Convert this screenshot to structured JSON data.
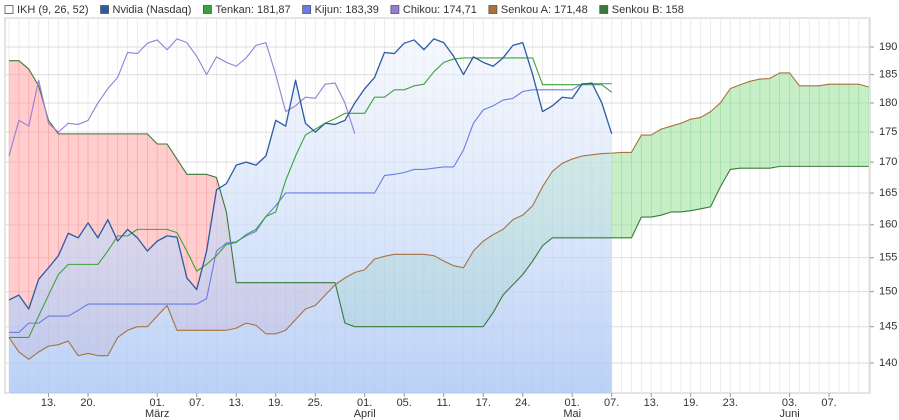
{
  "chart_data": {
    "type": "ichimoku",
    "indicator": {
      "name": "IKH (9, 26, 52)",
      "color": "#ffffff"
    },
    "categories": [
      null,
      null,
      null,
      null,
      "13.",
      null,
      null,
      null,
      "20.",
      null,
      null,
      null,
      null,
      null,
      null,
      "01.",
      null,
      null,
      null,
      "07.",
      null,
      null,
      null,
      "13.",
      null,
      null,
      null,
      "19.",
      null,
      null,
      null,
      "25.",
      null,
      null,
      null,
      null,
      "01.",
      null,
      null,
      null,
      "05.",
      null,
      null,
      null,
      "11.",
      null,
      null,
      null,
      "17.",
      null,
      null,
      null,
      "24.",
      null,
      null,
      null,
      null,
      "01.",
      null,
      null,
      null,
      "07.",
      null,
      null,
      null,
      "13.",
      null,
      null,
      null,
      "19.",
      null,
      null,
      null,
      "23.",
      null,
      null,
      null,
      null,
      null,
      "03.",
      null,
      null,
      null,
      "07.",
      null,
      null,
      null,
      null
    ],
    "months": [
      null,
      null,
      null,
      null,
      null,
      null,
      null,
      null,
      null,
      null,
      null,
      null,
      null,
      null,
      null,
      "März",
      null,
      null,
      null,
      null,
      null,
      null,
      null,
      null,
      null,
      null,
      null,
      null,
      null,
      null,
      null,
      null,
      null,
      null,
      null,
      null,
      "April",
      null,
      null,
      null,
      null,
      null,
      null,
      null,
      null,
      null,
      null,
      null,
      null,
      null,
      null,
      null,
      null,
      null,
      null,
      null,
      null,
      "Mai",
      null,
      null,
      null,
      null,
      null,
      null,
      null,
      null,
      null,
      null,
      null,
      null,
      null,
      null,
      null,
      null,
      null,
      null,
      null,
      null,
      null,
      "Juni",
      null,
      null,
      null,
      null,
      null,
      null,
      null,
      null
    ],
    "series": [
      {
        "name": "Nvidia (Nasdaq)",
        "color": "#2c5aa6",
        "area_colors": [
          "#eef3fc",
          "#a9c5f4"
        ],
        "values": [
          148.8,
          149.5,
          147.5,
          151.8,
          153.5,
          155.3,
          158.7,
          158,
          160.3,
          158,
          160.8,
          157.5,
          159.3,
          158,
          156,
          157.5,
          158.3,
          158.1,
          152,
          150.3,
          156,
          165.5,
          166.5,
          169.5,
          170,
          169.5,
          171,
          177,
          176,
          184,
          176.5,
          175,
          176.5,
          176.3,
          177,
          180,
          182.5,
          184.5,
          189,
          188.8,
          190.7,
          191.3,
          189.5,
          191.5,
          190.8,
          188.3,
          185,
          188.2,
          187.2,
          186.5,
          188,
          190.3,
          190.8,
          185,
          178.5,
          179.5,
          181,
          180.8,
          183.3,
          183.5,
          180,
          174.71,
          null,
          null,
          null,
          null,
          null,
          null,
          null,
          null,
          null,
          null,
          null,
          null,
          null,
          null,
          null,
          null,
          null,
          null,
          null,
          null,
          null,
          null,
          null,
          null,
          null,
          null
        ]
      },
      {
        "name": "Tenkan: 181,87",
        "color": "#3ca23c",
        "values": [
          143.5,
          143.5,
          143.5,
          146.5,
          149.5,
          152.5,
          154,
          154,
          154,
          154,
          156,
          158.3,
          158.3,
          159.3,
          159.3,
          159.3,
          159.3,
          158.8,
          156,
          153,
          154,
          155.3,
          157,
          157.3,
          158.5,
          159.3,
          161.3,
          162,
          167,
          171,
          174.5,
          175.5,
          176.5,
          177.3,
          178.2,
          178.2,
          178.2,
          181,
          181,
          182.3,
          182.3,
          183,
          183.3,
          185.5,
          187.2,
          187.8,
          188,
          188,
          188,
          188,
          188,
          188,
          188,
          188,
          183.2,
          183.2,
          183.2,
          183.2,
          183.2,
          183.2,
          183.2,
          181.87,
          null,
          null,
          null,
          null,
          null,
          null,
          null,
          null,
          null,
          null,
          null,
          null,
          null,
          null,
          null,
          null,
          null,
          null,
          null,
          null,
          null,
          null,
          null,
          null,
          null,
          null
        ]
      },
      {
        "name": "Kijun: 183,39",
        "color": "#6a7ce6",
        "values": [
          144.2,
          144.2,
          145.5,
          145.5,
          146.5,
          146.5,
          146.5,
          147.3,
          148.2,
          148.2,
          148.2,
          148.2,
          148.2,
          148.2,
          148.2,
          148.2,
          148.2,
          148.2,
          148.2,
          148.2,
          149,
          156,
          157.2,
          157.4,
          158.3,
          159,
          161.3,
          163,
          165,
          165,
          165,
          165,
          165,
          165,
          165,
          165,
          165,
          165,
          167.8,
          168,
          168.3,
          168.8,
          168.8,
          169,
          169.2,
          169.2,
          172,
          176.5,
          178.8,
          179.5,
          180.5,
          180.8,
          182,
          182.3,
          182.3,
          182.3,
          182.3,
          182.3,
          183.39,
          183.39,
          183.39,
          183.39,
          null,
          null,
          null,
          null,
          null,
          null,
          null,
          null,
          null,
          null,
          null,
          null,
          null,
          null,
          null,
          null,
          null,
          null,
          null,
          null,
          null,
          null,
          null,
          null,
          null,
          null
        ]
      },
      {
        "name": "Chikou: 174,71",
        "color": "#9a7bd4",
        "values": [
          171,
          177,
          176,
          184,
          176.5,
          175,
          176.5,
          176.3,
          177,
          180,
          182.5,
          184.5,
          189,
          188.8,
          190.7,
          191.3,
          189.5,
          191.5,
          190.8,
          188.3,
          185,
          188.2,
          187.2,
          186.5,
          188,
          190.3,
          190.8,
          185,
          178.5,
          179.5,
          181,
          180.8,
          183.3,
          183.5,
          180,
          174.71,
          null,
          null,
          null,
          null,
          null,
          null,
          null,
          null,
          null,
          null,
          null,
          null,
          null,
          null,
          null,
          null,
          null,
          null,
          null,
          null,
          null,
          null,
          null,
          null,
          null,
          null,
          null,
          null,
          null,
          null,
          null,
          null,
          null,
          null,
          null,
          null,
          null,
          null,
          null,
          null,
          null,
          null,
          null,
          null,
          null,
          null,
          null,
          null,
          null,
          null,
          null,
          null
        ]
      },
      {
        "name": "Senkou A: 171,48",
        "color": "#a8713f",
        "values": [
          143.5,
          141.5,
          140.5,
          141.5,
          142.3,
          142.5,
          143,
          141,
          141.3,
          141,
          141,
          143.5,
          144.5,
          145,
          145,
          146.5,
          148,
          144.5,
          144.5,
          144.5,
          144.5,
          144.5,
          144.5,
          144.8,
          145.5,
          145.2,
          144,
          144,
          144.5,
          146,
          147.5,
          148,
          149.5,
          151,
          152,
          152.8,
          153.2,
          154.8,
          155.2,
          155.5,
          155.5,
          155.5,
          155.5,
          155.3,
          154.5,
          153.8,
          153.5,
          156,
          157.5,
          158.5,
          159.3,
          160.8,
          161.5,
          163,
          166,
          168.5,
          169.8,
          170.5,
          171,
          171.2,
          171.4,
          171.48,
          171.6,
          171.6,
          174.5,
          174.5,
          175.5,
          176,
          176.5,
          177.2,
          177.5,
          178.5,
          180,
          182.5,
          183.2,
          183.8,
          184.2,
          184.3,
          185.3,
          185.3,
          183,
          183,
          183,
          183.3,
          183.3,
          183.3,
          183.3,
          182.8
        ]
      },
      {
        "name": "Senkou B: 158",
        "color": "#3b7a3b",
        "values": [
          187.5,
          187.5,
          186,
          183,
          177,
          174.7,
          174.7,
          174.7,
          174.7,
          174.7,
          174.7,
          174.7,
          174.7,
          174.7,
          174.7,
          173,
          173,
          170.5,
          168,
          168,
          168,
          167.5,
          162,
          151.3,
          151.3,
          151.3,
          151.3,
          151.3,
          151.3,
          151.3,
          151.3,
          151.3,
          151.3,
          151.3,
          145.5,
          145,
          145,
          145,
          145,
          145,
          145,
          145,
          145,
          145,
          145,
          145,
          145,
          145,
          145,
          147,
          149.5,
          151,
          152.5,
          154.5,
          156.8,
          158,
          158,
          158,
          158,
          158,
          158,
          158,
          158,
          158,
          161.2,
          161.2,
          161.5,
          162,
          162,
          162.2,
          162.5,
          162.8,
          166,
          168.8,
          169,
          169,
          169,
          169,
          169.3,
          169.3,
          169.3,
          169.3,
          169.3,
          169.3,
          169.3,
          169.3,
          169.3,
          169.3
        ]
      }
    ],
    "cloud_up_color": "#8fe08f",
    "cloud_down_color": "#ff9c9c",
    "ylim": [
      136,
      195.4
    ],
    "yticks": [
      190,
      185,
      180,
      175,
      170,
      165,
      160,
      155,
      150,
      145,
      140
    ],
    "log_scale": true,
    "grid": true
  }
}
